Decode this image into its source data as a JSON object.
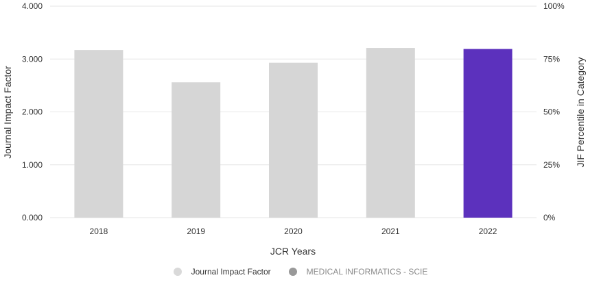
{
  "chart_data": {
    "type": "bar",
    "categories": [
      "2018",
      "2019",
      "2020",
      "2021",
      "2022"
    ],
    "series": [
      {
        "name": "Journal Impact Factor",
        "values": [
          3.17,
          2.56,
          2.93,
          3.21,
          3.19
        ]
      }
    ],
    "highlight_index": 4,
    "colors": {
      "bar": "#d6d6d6",
      "highlight": "#5c31bd",
      "grid": "#e6e6e6",
      "legend_jif": "#d9d9d9",
      "legend_category": "#999999"
    },
    "xlabel": "JCR Years",
    "ylabel": "Journal Impact Factor",
    "y2label": "JIF Percentile in Category",
    "ylim": [
      0,
      4
    ],
    "y2lim": [
      0,
      100
    ],
    "yticks": [
      "0.000",
      "1.000",
      "2.000",
      "3.000",
      "4.000"
    ],
    "y2ticks": [
      "0%",
      "25%",
      "50%",
      "75%",
      "100%"
    ],
    "grid": true,
    "legend_position": "bottom-center"
  },
  "legend": {
    "items": [
      {
        "label": "Journal Impact Factor",
        "icon": "circle-icon"
      },
      {
        "label": "MEDICAL INFORMATICS - SCIE",
        "icon": "circle-icon"
      }
    ]
  }
}
